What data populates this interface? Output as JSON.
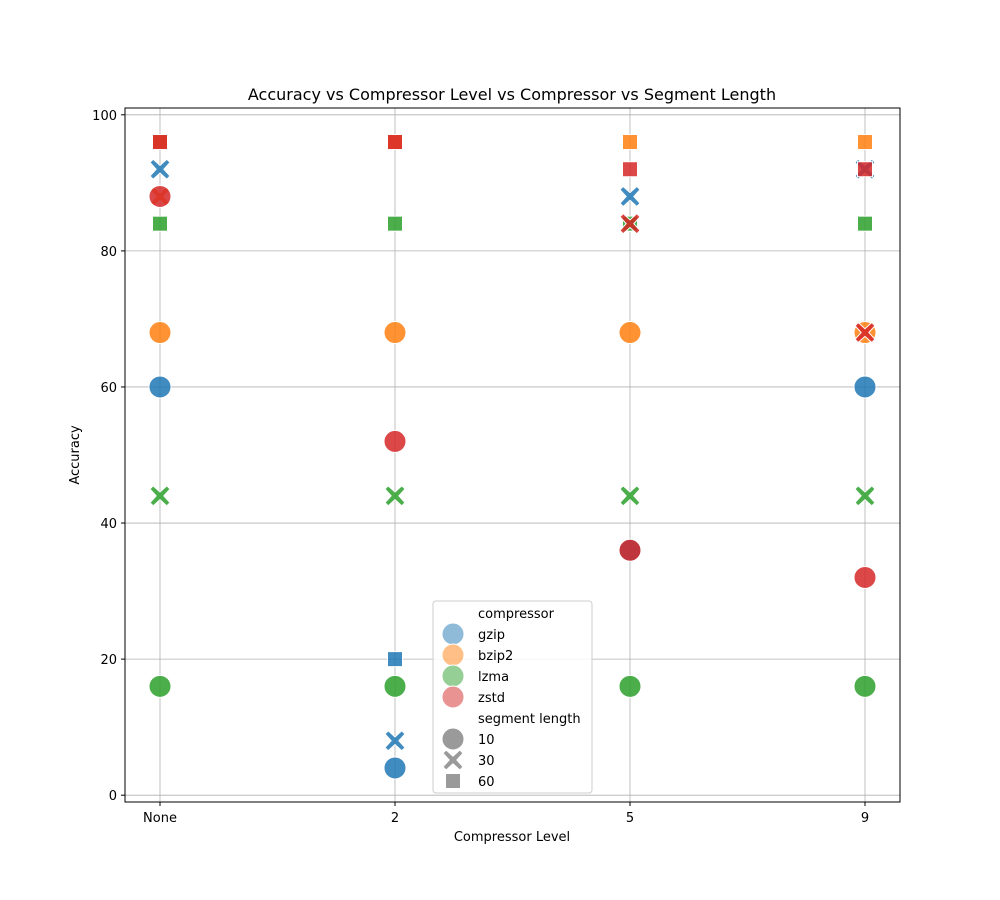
{
  "chart_data": {
    "type": "scatter",
    "title": "Accuracy vs Compressor Level vs Compressor vs Segment Length",
    "xlabel": "Compressor Level",
    "ylabel": "Accuracy",
    "x_categories": [
      "None",
      "2",
      "5",
      "9"
    ],
    "ylim": [
      -1,
      101
    ],
    "yticks": [
      0,
      20,
      40,
      60,
      80,
      100
    ],
    "grid": true,
    "legend_position": "lower-center",
    "hue": {
      "title": "compressor",
      "entries": [
        {
          "name": "gzip",
          "color": "#1f77b4"
        },
        {
          "name": "bzip2",
          "color": "#ff7f0e"
        },
        {
          "name": "lzma",
          "color": "#2ca02c"
        },
        {
          "name": "zstd",
          "color": "#d62728"
        }
      ]
    },
    "style": {
      "title": "segment length",
      "entries": [
        {
          "name": "10",
          "marker": "circle"
        },
        {
          "name": "30",
          "marker": "x"
        },
        {
          "name": "60",
          "marker": "square"
        }
      ]
    },
    "points": [
      {
        "x": "None",
        "compressor": "gzip",
        "segment": "10",
        "y": 60
      },
      {
        "x": "None",
        "compressor": "gzip",
        "segment": "30",
        "y": 92
      },
      {
        "x": "None",
        "compressor": "gzip",
        "segment": "60",
        "y": 96
      },
      {
        "x": "None",
        "compressor": "bzip2",
        "segment": "10",
        "y": 68
      },
      {
        "x": "None",
        "compressor": "bzip2",
        "segment": "30",
        "y": 88
      },
      {
        "x": "None",
        "compressor": "bzip2",
        "segment": "60",
        "y": 96
      },
      {
        "x": "None",
        "compressor": "lzma",
        "segment": "10",
        "y": 16
      },
      {
        "x": "None",
        "compressor": "lzma",
        "segment": "30",
        "y": 44
      },
      {
        "x": "None",
        "compressor": "lzma",
        "segment": "60",
        "y": 84
      },
      {
        "x": "None",
        "compressor": "zstd",
        "segment": "10",
        "y": 88
      },
      {
        "x": "None",
        "compressor": "zstd",
        "segment": "60",
        "y": 96
      },
      {
        "x": "2",
        "compressor": "gzip",
        "segment": "10",
        "y": 4
      },
      {
        "x": "2",
        "compressor": "gzip",
        "segment": "30",
        "y": 8
      },
      {
        "x": "2",
        "compressor": "gzip",
        "segment": "60",
        "y": 20
      },
      {
        "x": "2",
        "compressor": "bzip2",
        "segment": "10",
        "y": 68
      },
      {
        "x": "2",
        "compressor": "bzip2",
        "segment": "60",
        "y": 96
      },
      {
        "x": "2",
        "compressor": "lzma",
        "segment": "10",
        "y": 16
      },
      {
        "x": "2",
        "compressor": "lzma",
        "segment": "30",
        "y": 44
      },
      {
        "x": "2",
        "compressor": "lzma",
        "segment": "60",
        "y": 84
      },
      {
        "x": "2",
        "compressor": "zstd",
        "segment": "10",
        "y": 52
      },
      {
        "x": "2",
        "compressor": "zstd",
        "segment": "60",
        "y": 96
      },
      {
        "x": "5",
        "compressor": "gzip",
        "segment": "10",
        "y": 36
      },
      {
        "x": "5",
        "compressor": "gzip",
        "segment": "30",
        "y": 88
      },
      {
        "x": "5",
        "compressor": "bzip2",
        "segment": "10",
        "y": 68
      },
      {
        "x": "5",
        "compressor": "bzip2",
        "segment": "30",
        "y": 84
      },
      {
        "x": "5",
        "compressor": "bzip2",
        "segment": "60",
        "y": 96
      },
      {
        "x": "5",
        "compressor": "lzma",
        "segment": "10",
        "y": 16
      },
      {
        "x": "5",
        "compressor": "lzma",
        "segment": "30",
        "y": 44
      },
      {
        "x": "5",
        "compressor": "lzma",
        "segment": "60",
        "y": 84
      },
      {
        "x": "5",
        "compressor": "zstd",
        "segment": "10",
        "y": 36
      },
      {
        "x": "5",
        "compressor": "zstd",
        "segment": "30",
        "y": 84
      },
      {
        "x": "5",
        "compressor": "zstd",
        "segment": "60",
        "y": 92
      },
      {
        "x": "9",
        "compressor": "gzip",
        "segment": "10",
        "y": 60
      },
      {
        "x": "9",
        "compressor": "gzip",
        "segment": "30",
        "y": 92
      },
      {
        "x": "9",
        "compressor": "bzip2",
        "segment": "10",
        "y": 68
      },
      {
        "x": "9",
        "compressor": "bzip2",
        "segment": "60",
        "y": 96
      },
      {
        "x": "9",
        "compressor": "lzma",
        "segment": "10",
        "y": 16
      },
      {
        "x": "9",
        "compressor": "lzma",
        "segment": "30",
        "y": 44
      },
      {
        "x": "9",
        "compressor": "lzma",
        "segment": "60",
        "y": 84
      },
      {
        "x": "9",
        "compressor": "zstd",
        "segment": "10",
        "y": 32
      },
      {
        "x": "9",
        "compressor": "zstd",
        "segment": "30",
        "y": 68
      },
      {
        "x": "9",
        "compressor": "zstd",
        "segment": "60",
        "y": 92
      }
    ]
  }
}
